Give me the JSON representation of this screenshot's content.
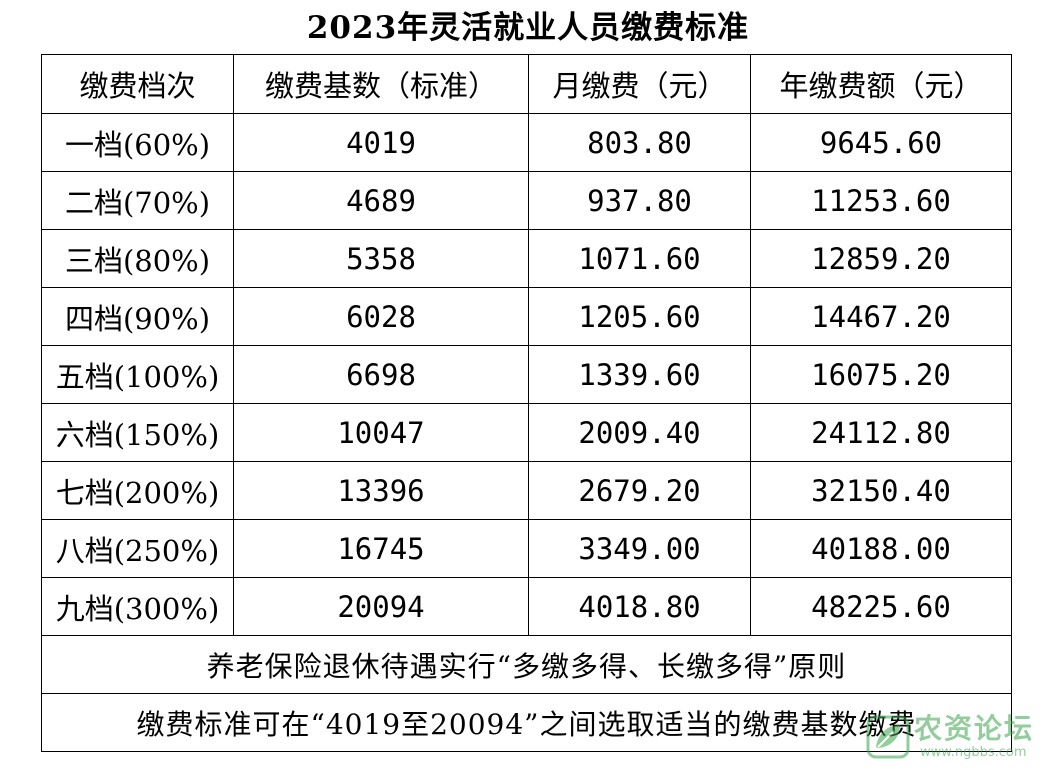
{
  "title": "2023年灵活就业人员缴费标准",
  "table": {
    "headers": [
      "缴费档次",
      "缴费基数（标准）",
      "月缴费（元）",
      "年缴费额（元）"
    ],
    "rows": [
      [
        "一档(60%)",
        "4019",
        "803.80",
        "9645.60"
      ],
      [
        "二档(70%)",
        "4689",
        "937.80",
        "11253.60"
      ],
      [
        "三档(80%)",
        "5358",
        "1071.60",
        "12859.20"
      ],
      [
        "四档(90%)",
        "6028",
        "1205.60",
        "14467.20"
      ],
      [
        "五档(100%)",
        "6698",
        "1339.60",
        "16075.20"
      ],
      [
        "六档(150%)",
        "10047",
        "2009.40",
        "24112.80"
      ],
      [
        "七档(200%)",
        "13396",
        "2679.20",
        "32150.40"
      ],
      [
        "八档(250%)",
        "16745",
        "3349.00",
        "40188.00"
      ],
      [
        "九档(300%)",
        "20094",
        "4018.80",
        "48225.60"
      ]
    ],
    "notes": [
      "养老保险退休待遇实行“多缴多得、长缴多得”原则",
      "缴费标准可在“4019至20094”之间选取适当的缴费基数缴费"
    ]
  },
  "watermark": {
    "text": "农资论坛",
    "url": "www.ngbbs.com",
    "color": "#3aa64a",
    "icon": "leaf-logo-icon"
  }
}
